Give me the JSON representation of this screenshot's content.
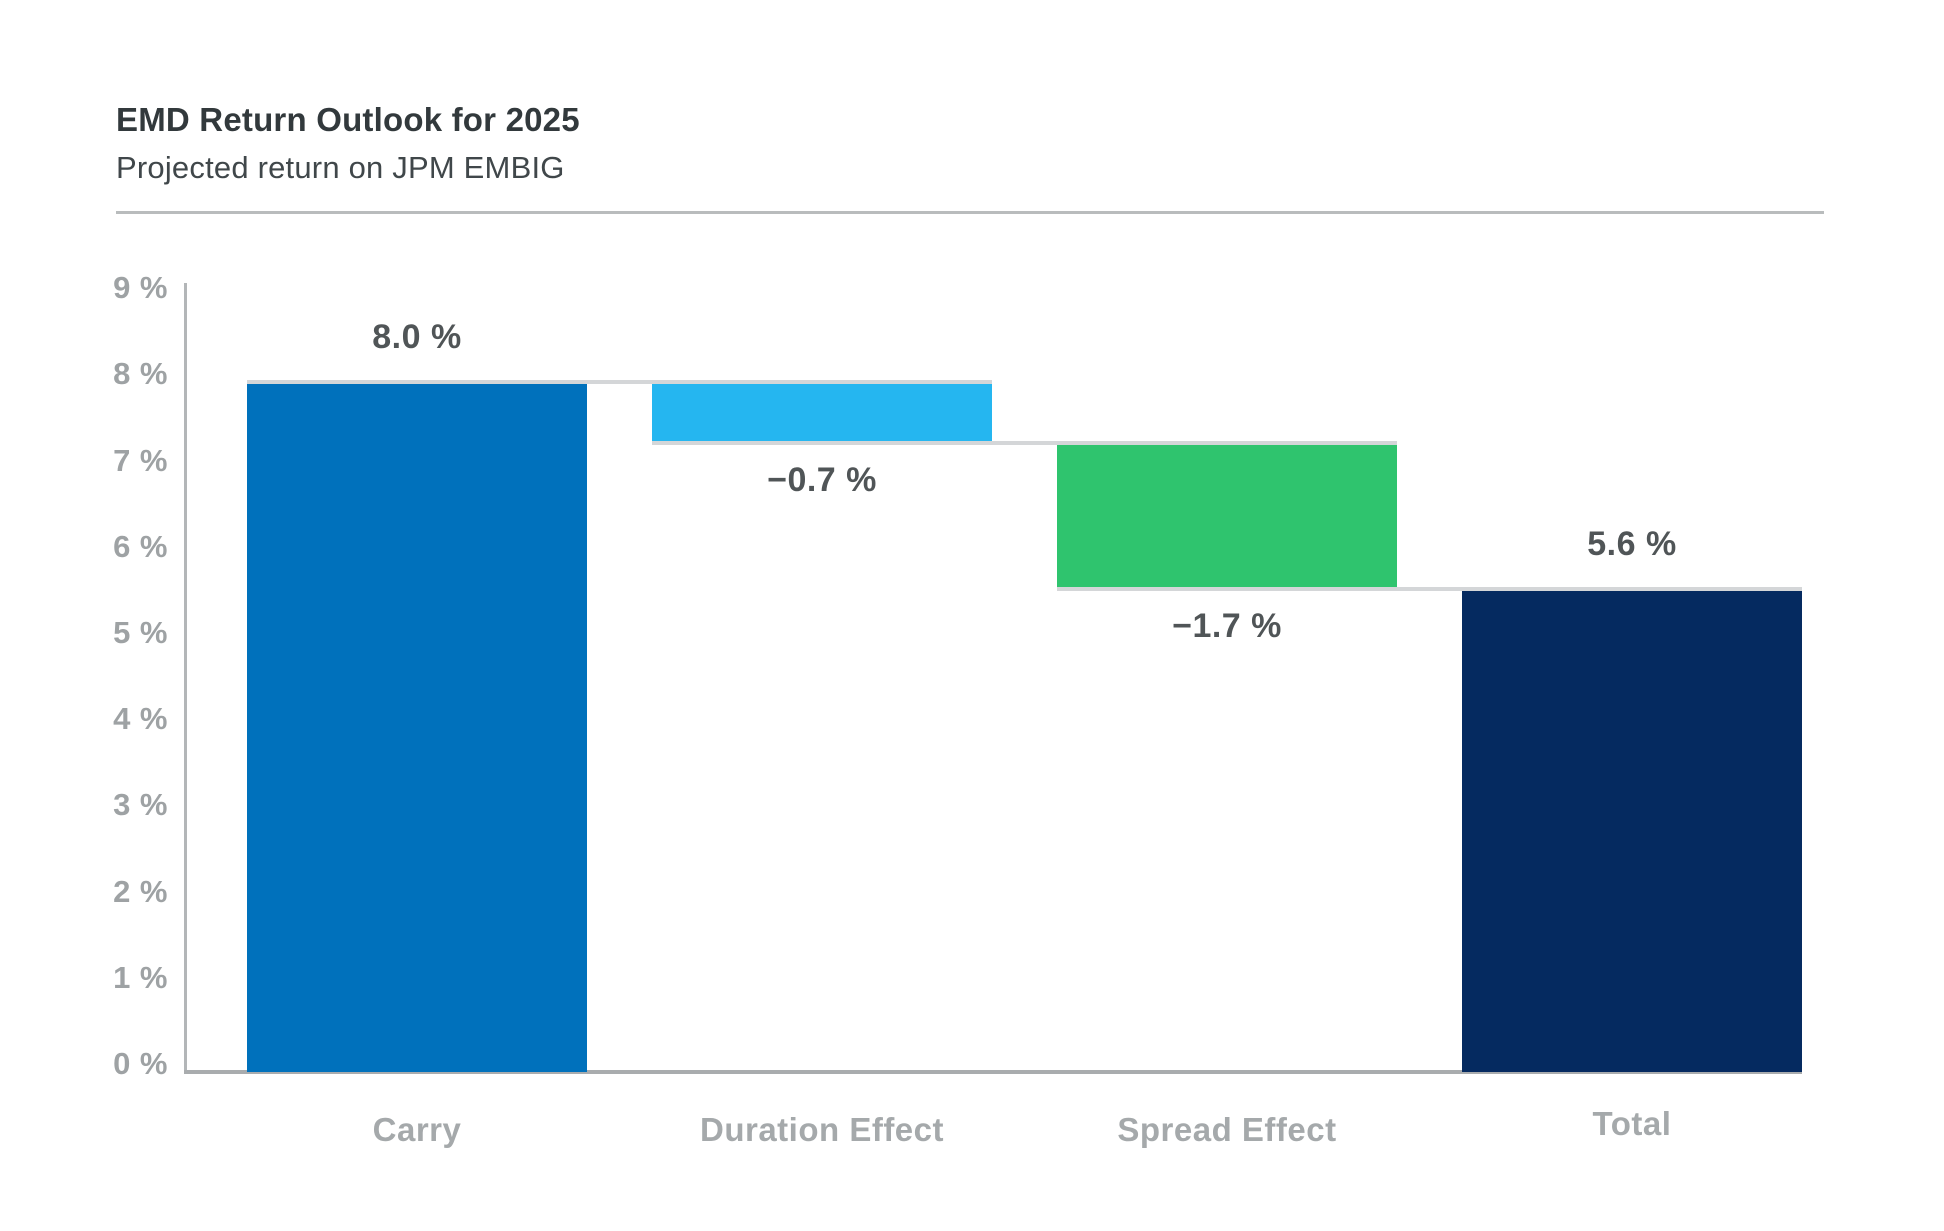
{
  "header": {
    "title": "EMD Return Outlook for 2025",
    "subtitle": "Projected return on JPM EMBIG"
  },
  "chart_data": {
    "type": "bar",
    "subtype": "waterfall",
    "title": "EMD Return Outlook for 2025",
    "subtitle": "Projected return on JPM EMBIG",
    "categories": [
      "Carry",
      "Duration Effect",
      "Spread Effect",
      "Total"
    ],
    "values": [
      8.0,
      -0.7,
      -1.7,
      5.6
    ],
    "unit": "%",
    "segments": [
      {
        "category": "Carry",
        "start": 0,
        "end": 8.0,
        "value": 8.0,
        "value_label": "8.0 %",
        "label_position": "above",
        "color": "#0071bc"
      },
      {
        "category": "Duration Effect",
        "start": 8.0,
        "end": 7.3,
        "value": -0.7,
        "value_label": "−0.7 %",
        "label_position": "below",
        "color": "#25b6f0"
      },
      {
        "category": "Spread Effect",
        "start": 7.3,
        "end": 5.6,
        "value": -1.7,
        "value_label": "−1.7 %",
        "label_position": "below",
        "color": "#2fc46e"
      },
      {
        "category": "Total",
        "start": 0,
        "end": 5.6,
        "value": 5.6,
        "value_label": "5.6 %",
        "label_position": "above",
        "color": "#052a60"
      }
    ],
    "ylim": [
      0,
      9
    ],
    "y_ticks": [
      "0 %",
      "1 %",
      "2 %",
      "3 %",
      "4 %",
      "5 %",
      "6 %",
      "7 %",
      "8 %",
      "9 %"
    ],
    "grid": false,
    "legend": false,
    "colors": {
      "carry": "#0071bc",
      "duration_effect": "#25b6f0",
      "spread_effect": "#2fc46e",
      "total": "#052a60",
      "connector": "#d4d6d8",
      "y_axis": "#b3b6b8",
      "x_axis": "#a9acae",
      "tick_label": "#9ea2a4",
      "category_label": "#a5a9ab",
      "value_label": "#505557"
    }
  }
}
